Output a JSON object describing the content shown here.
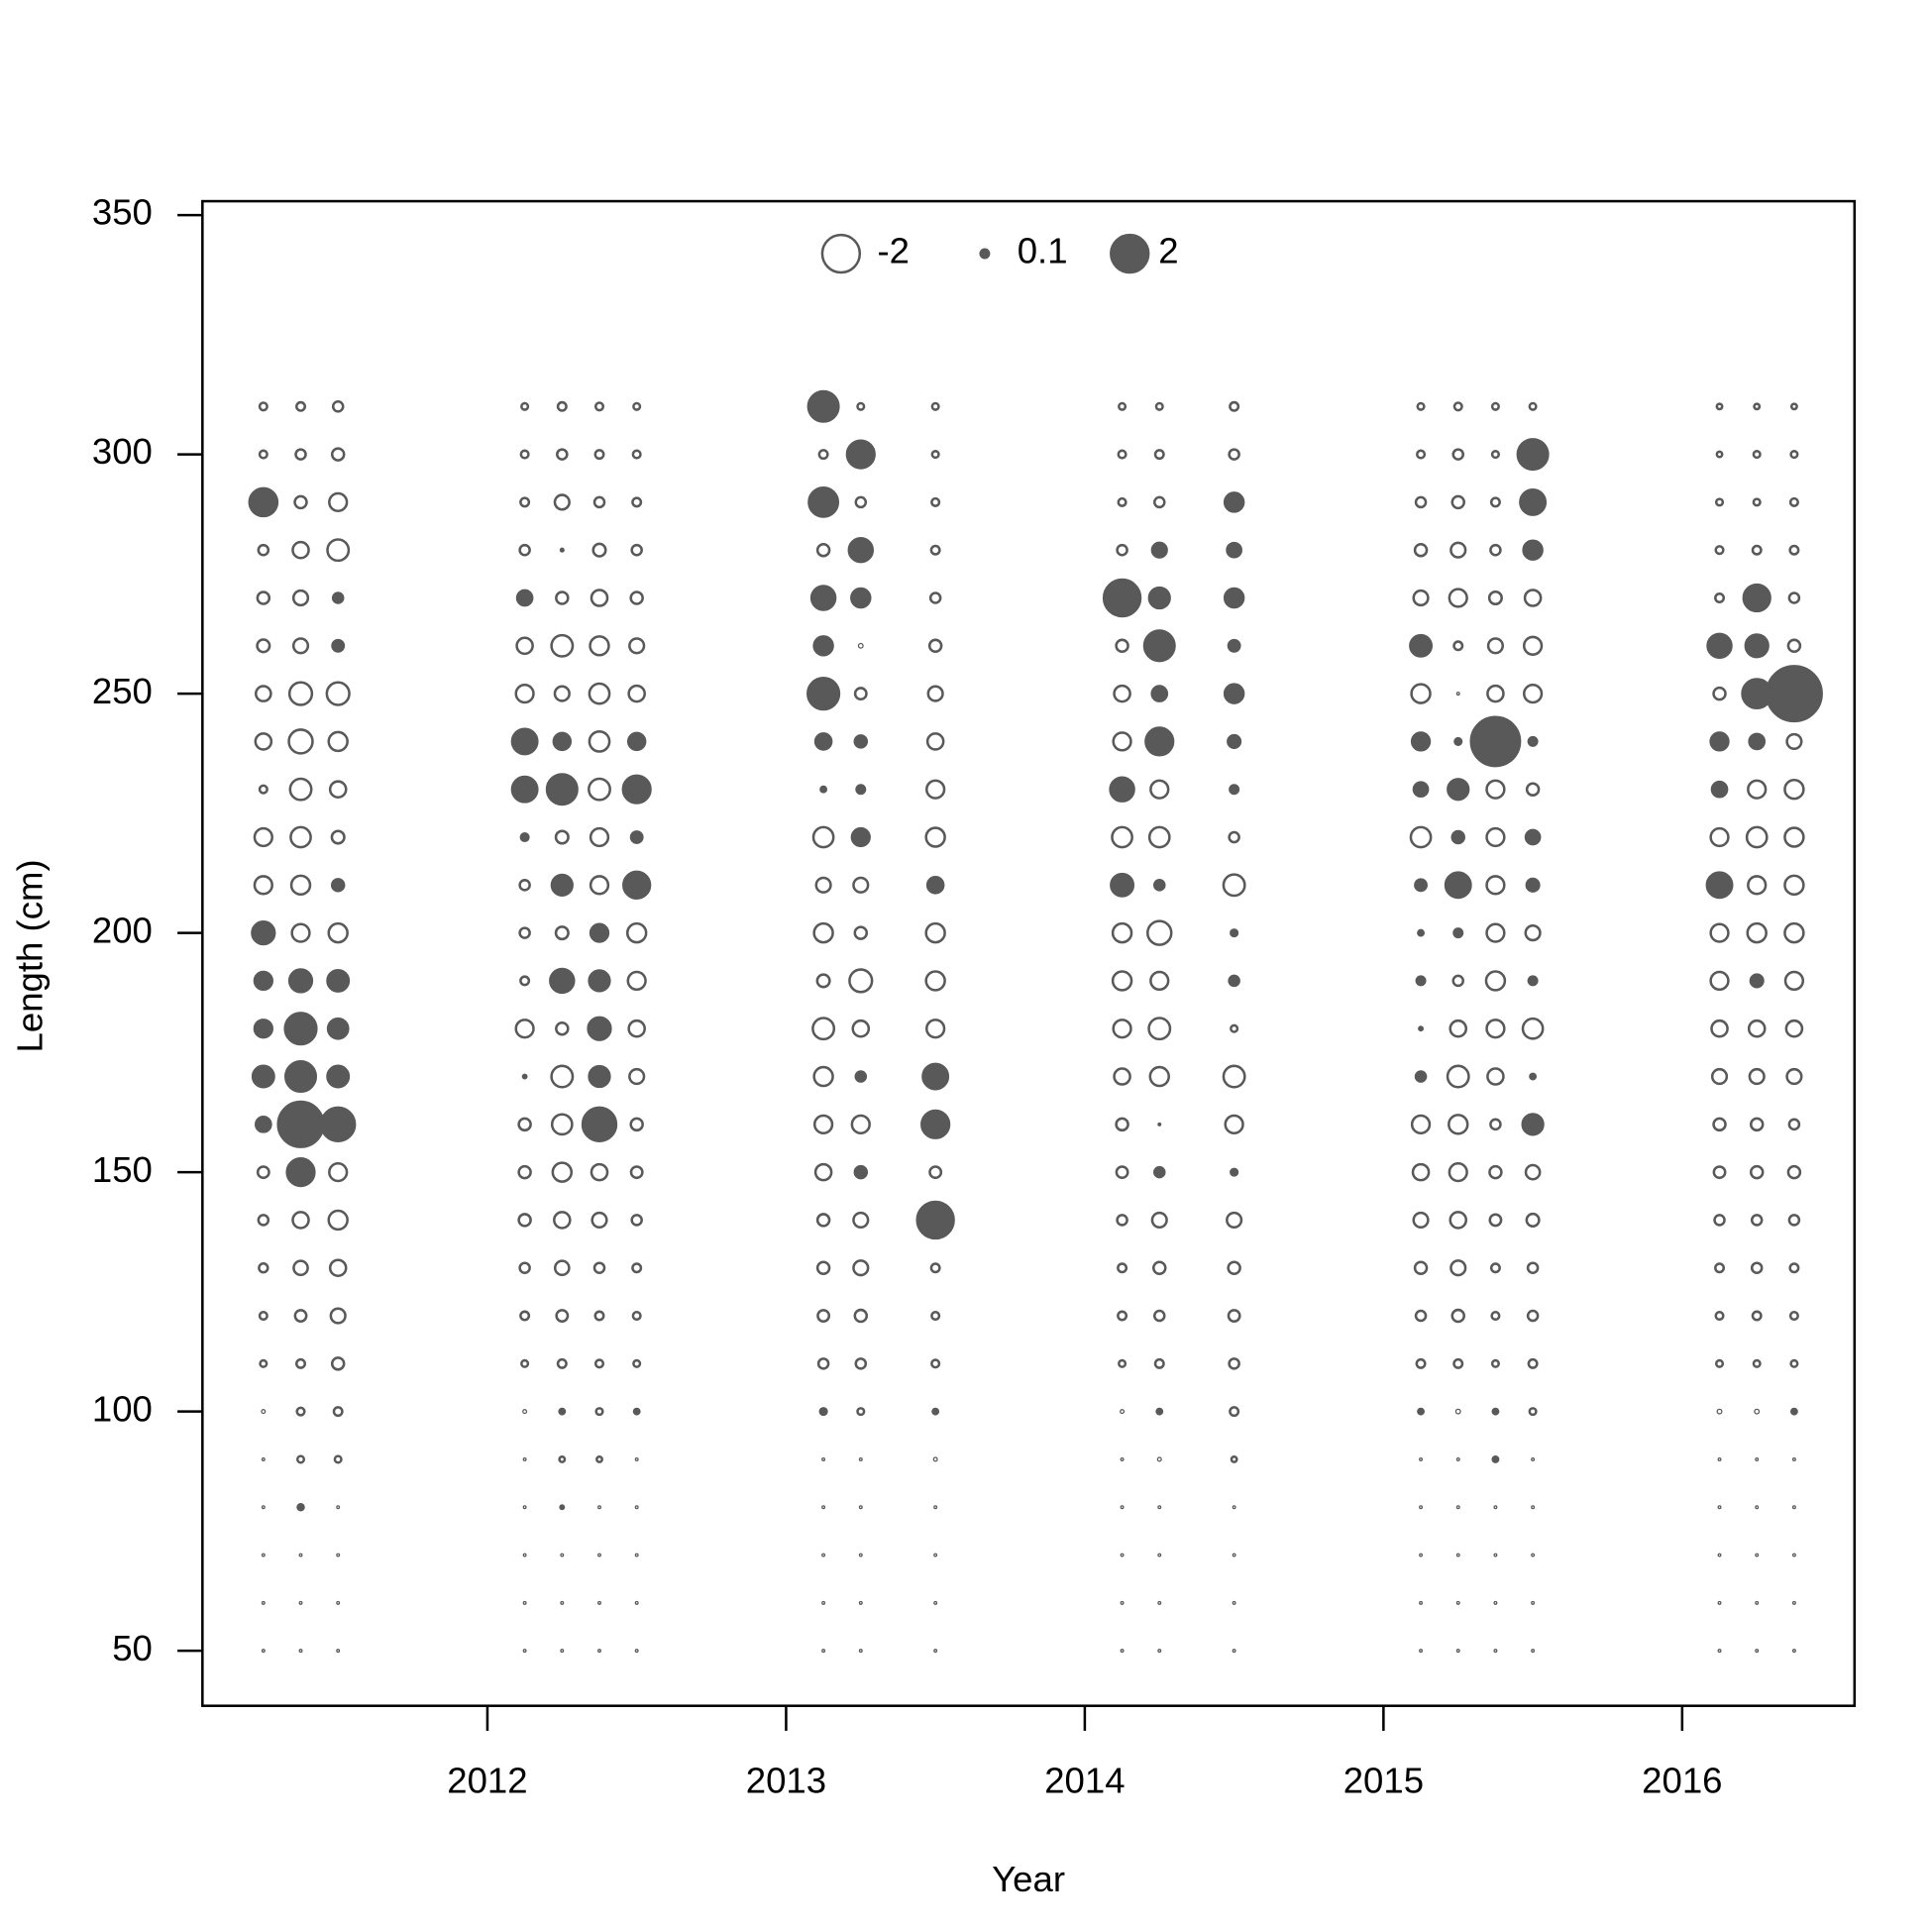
{
  "chart_data": {
    "type": "bubble",
    "xlabel": "Year",
    "ylabel": "Length (cm)",
    "xlim": [
      2011.046,
      2016.577
    ],
    "ylim": [
      38.5,
      352.9
    ],
    "xticks": [
      2012,
      2013,
      2014,
      2015,
      2016
    ],
    "yticks": [
      50,
      100,
      150,
      200,
      250,
      300,
      350
    ],
    "pos_color": "#595959",
    "neg_color": "#ffffff",
    "stroke_color": "#595959",
    "legend": [
      -2,
      0.1,
      2
    ],
    "y": [
      310,
      300,
      290,
      280,
      270,
      260,
      250,
      240,
      230,
      220,
      210,
      200,
      190,
      180,
      170,
      160,
      150,
      140,
      130,
      120,
      110,
      100,
      90,
      80,
      70,
      60,
      50
    ],
    "columns": [
      {
        "x": 2011.25,
        "values": [
          -0.08,
          -0.08,
          1.1,
          -0.14,
          -0.2,
          -0.22,
          -0.32,
          -0.36,
          -0.08,
          -0.44,
          -0.44,
          0.72,
          0.44,
          0.44,
          0.64,
          0.32,
          -0.18,
          -0.14,
          -0.11,
          -0.08,
          -0.06,
          -0.02,
          -0.01,
          -0.01,
          -0.01,
          -0.01,
          -0.01
        ]
      },
      {
        "x": 2011.375,
        "values": [
          -0.1,
          -0.14,
          -0.2,
          -0.36,
          -0.3,
          -0.3,
          -0.72,
          -0.8,
          -0.64,
          -0.57,
          -0.5,
          -0.44,
          0.72,
          1.4,
          1.3,
          2.9,
          1.07,
          -0.36,
          -0.28,
          -0.18,
          -0.1,
          -0.08,
          -0.06,
          0.05,
          -0.01,
          -0.01,
          -0.01
        ]
      },
      {
        "x": 2011.5,
        "values": [
          -0.14,
          -0.2,
          -0.44,
          -0.64,
          0.14,
          0.18,
          -0.72,
          -0.5,
          -0.36,
          -0.22,
          0.2,
          -0.5,
          0.64,
          0.57,
          0.64,
          1.6,
          -0.44,
          -0.5,
          -0.36,
          -0.3,
          -0.2,
          -0.1,
          -0.06,
          -0.01,
          -0.01,
          -0.01,
          -0.01
        ]
      },
      {
        "x": 2012.125,
        "values": [
          -0.06,
          -0.08,
          -0.1,
          -0.14,
          0.32,
          -0.36,
          -0.44,
          0.9,
          0.9,
          0.08,
          -0.14,
          -0.14,
          -0.1,
          -0.44,
          0.03,
          -0.2,
          -0.2,
          -0.2,
          -0.14,
          -0.1,
          -0.06,
          -0.02,
          -0.01,
          -0.01,
          -0.01,
          -0.01,
          -0.01
        ]
      },
      {
        "x": 2012.25,
        "values": [
          -0.1,
          -0.14,
          -0.3,
          0.02,
          -0.2,
          -0.64,
          -0.3,
          0.4,
          1.3,
          -0.22,
          0.6,
          -0.22,
          0.8,
          -0.2,
          -0.64,
          -0.57,
          -0.5,
          -0.36,
          -0.28,
          -0.18,
          -0.1,
          0.04,
          -0.04,
          0.03,
          -0.01,
          -0.01,
          -0.01
        ]
      },
      {
        "x": 2012.375,
        "values": [
          -0.08,
          -0.1,
          -0.14,
          -0.22,
          -0.36,
          -0.5,
          -0.57,
          -0.57,
          -0.64,
          -0.44,
          -0.44,
          0.44,
          0.6,
          0.72,
          0.6,
          1.6,
          -0.36,
          -0.3,
          -0.14,
          -0.1,
          -0.08,
          -0.06,
          -0.04,
          -0.01,
          -0.01,
          -0.01,
          -0.01
        ]
      },
      {
        "x": 2012.5,
        "values": [
          -0.06,
          -0.08,
          -0.1,
          -0.14,
          -0.2,
          -0.3,
          -0.36,
          0.4,
          1.07,
          0.18,
          1.0,
          -0.5,
          -0.44,
          -0.36,
          -0.3,
          -0.2,
          -0.18,
          -0.14,
          -0.1,
          -0.08,
          -0.06,
          0.04,
          -0.01,
          -0.01,
          -0.01,
          -0.01,
          -0.01
        ]
      },
      {
        "x": 2013.125,
        "values": [
          1.3,
          -0.1,
          1.2,
          -0.2,
          0.8,
          0.5,
          1.4,
          0.36,
          0.04,
          -0.57,
          -0.3,
          -0.5,
          -0.22,
          -0.64,
          -0.5,
          -0.44,
          -0.36,
          -0.2,
          -0.2,
          -0.18,
          -0.14,
          0.06,
          -0.01,
          -0.01,
          -0.01,
          -0.01,
          -0.01
        ]
      },
      {
        "x": 2013.25,
        "values": [
          -0.06,
          1.07,
          -0.14,
          0.8,
          0.5,
          -0.03,
          -0.18,
          0.2,
          0.1,
          0.44,
          -0.3,
          -0.2,
          -0.72,
          -0.36,
          0.14,
          -0.44,
          0.2,
          -0.3,
          -0.3,
          -0.2,
          -0.14,
          -0.06,
          -0.01,
          -0.01,
          -0.01,
          -0.01,
          -0.01
        ]
      },
      {
        "x": 2013.5,
        "values": [
          -0.06,
          -0.06,
          -0.08,
          -0.1,
          -0.14,
          -0.2,
          -0.3,
          -0.36,
          -0.44,
          -0.5,
          0.36,
          -0.5,
          -0.5,
          -0.44,
          0.9,
          1.07,
          -0.18,
          1.9,
          -0.1,
          -0.08,
          -0.08,
          0.04,
          -0.02,
          -0.01,
          -0.01,
          -0.01,
          -0.01
        ]
      },
      {
        "x": 2014.125,
        "values": [
          -0.06,
          -0.08,
          -0.08,
          -0.14,
          1.9,
          -0.2,
          -0.36,
          -0.44,
          0.8,
          -0.57,
          0.7,
          -0.5,
          -0.5,
          -0.44,
          -0.36,
          -0.2,
          -0.18,
          -0.14,
          -0.1,
          -0.1,
          -0.06,
          -0.02,
          -0.01,
          -0.01,
          -0.01,
          -0.01,
          -0.01
        ]
      },
      {
        "x": 2014.25,
        "values": [
          -0.06,
          -0.1,
          -0.14,
          0.3,
          0.6,
          1.3,
          0.32,
          1.07,
          -0.44,
          -0.57,
          0.14,
          -0.8,
          -0.44,
          -0.64,
          -0.5,
          0.01,
          0.14,
          -0.3,
          -0.2,
          -0.14,
          -0.1,
          0.04,
          -0.02,
          -0.01,
          -0.01,
          -0.01,
          -0.01
        ]
      },
      {
        "x": 2014.5,
        "values": [
          -0.1,
          -0.14,
          0.5,
          0.28,
          0.5,
          0.18,
          0.5,
          0.22,
          0.1,
          -0.14,
          -0.64,
          0.06,
          0.14,
          -0.06,
          -0.64,
          -0.44,
          0.06,
          -0.3,
          -0.2,
          -0.18,
          -0.14,
          -0.1,
          -0.04,
          -0.01,
          -0.01,
          -0.01,
          -0.01
        ]
      },
      {
        "x": 2015.125,
        "values": [
          -0.06,
          -0.08,
          -0.14,
          -0.2,
          -0.3,
          0.64,
          -0.5,
          0.44,
          0.28,
          -0.57,
          0.18,
          0.04,
          0.1,
          0.03,
          0.14,
          -0.44,
          -0.36,
          -0.3,
          -0.2,
          -0.14,
          -0.1,
          0.04,
          -0.01,
          -0.01,
          -0.01,
          -0.01,
          -0.01
        ]
      },
      {
        "x": 2015.25,
        "values": [
          -0.08,
          -0.14,
          -0.2,
          -0.3,
          -0.44,
          -0.1,
          -0.01,
          0.06,
          0.6,
          0.2,
          0.9,
          0.1,
          -0.14,
          -0.36,
          -0.64,
          -0.5,
          -0.44,
          -0.36,
          -0.3,
          -0.2,
          -0.1,
          -0.03,
          -0.01,
          -0.01,
          -0.01,
          -0.01,
          -0.01
        ]
      },
      {
        "x": 2015.375,
        "values": [
          -0.06,
          -0.06,
          -0.1,
          -0.14,
          -0.22,
          -0.3,
          -0.36,
          3.4,
          -0.44,
          -0.44,
          -0.44,
          -0.44,
          -0.5,
          -0.44,
          -0.36,
          -0.14,
          -0.2,
          -0.18,
          -0.1,
          -0.08,
          -0.06,
          0.04,
          0.04,
          -0.01,
          -0.01,
          -0.01,
          -0.01
        ]
      },
      {
        "x": 2015.5,
        "values": [
          -0.06,
          1.3,
          0.9,
          0.5,
          -0.36,
          -0.44,
          -0.44,
          0.1,
          -0.2,
          0.28,
          0.22,
          -0.3,
          0.1,
          -0.57,
          0.04,
          0.6,
          -0.28,
          -0.22,
          -0.14,
          -0.14,
          -0.1,
          -0.06,
          -0.01,
          -0.01,
          -0.01,
          -0.01,
          -0.01
        ]
      },
      {
        "x": 2016.125,
        "values": [
          -0.04,
          -0.04,
          -0.06,
          -0.08,
          -0.1,
          0.8,
          -0.2,
          0.44,
          0.32,
          -0.44,
          0.9,
          -0.44,
          -0.44,
          -0.36,
          -0.3,
          -0.2,
          -0.18,
          -0.14,
          -0.1,
          -0.08,
          -0.06,
          -0.03,
          -0.01,
          -0.01,
          -0.01,
          -0.01,
          -0.01
        ]
      },
      {
        "x": 2016.25,
        "values": [
          -0.04,
          -0.06,
          -0.06,
          -0.1,
          1.0,
          0.72,
          1.2,
          0.32,
          -0.44,
          -0.57,
          -0.44,
          -0.5,
          0.22,
          -0.36,
          -0.3,
          -0.2,
          -0.2,
          -0.14,
          -0.14,
          -0.1,
          -0.06,
          -0.03,
          -0.01,
          -0.01,
          -0.01,
          -0.01,
          -0.01
        ]
      },
      {
        "x": 2016.375,
        "values": [
          -0.04,
          -0.06,
          -0.08,
          -0.1,
          -0.14,
          -0.2,
          4.3,
          -0.3,
          -0.5,
          -0.5,
          -0.5,
          -0.5,
          -0.44,
          -0.36,
          -0.3,
          -0.14,
          -0.2,
          -0.14,
          -0.1,
          -0.08,
          -0.06,
          0.04,
          -0.01,
          -0.01,
          -0.01,
          -0.01,
          -0.01
        ]
      }
    ]
  }
}
